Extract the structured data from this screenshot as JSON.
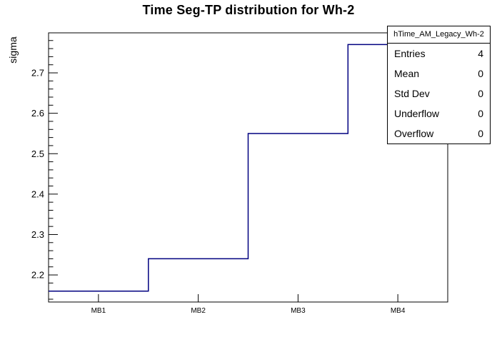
{
  "chart_data": {
    "type": "step-histogram",
    "title": "Time Seg-TP distribution for Wh-2",
    "categories": [
      "MB1",
      "MB2",
      "MB3",
      "MB4"
    ],
    "values": [
      2.16,
      2.24,
      2.55,
      2.77
    ],
    "xlabel": "",
    "ylabel": "sigma",
    "ylim": [
      2.133,
      2.799
    ],
    "y_major_ticks": [
      2.2,
      2.3,
      2.4,
      2.5,
      2.6,
      2.7
    ],
    "y_minor_step": 0.02,
    "grid": false,
    "legend_position": "top-right",
    "line_color": "#000080"
  },
  "stats_box": {
    "header": "hTime_AM_Legacy_Wh-2",
    "rows": [
      {
        "label": "Entries",
        "value": "4"
      },
      {
        "label": "Mean",
        "value": "0"
      },
      {
        "label": "Std Dev",
        "value": "0"
      },
      {
        "label": "Underflow",
        "value": "0"
      },
      {
        "label": "Overflow",
        "value": "0"
      }
    ]
  },
  "colors": {
    "background": "#ffffff",
    "frame": "#000000",
    "histogram_line": "#000080",
    "text": "#000000"
  }
}
